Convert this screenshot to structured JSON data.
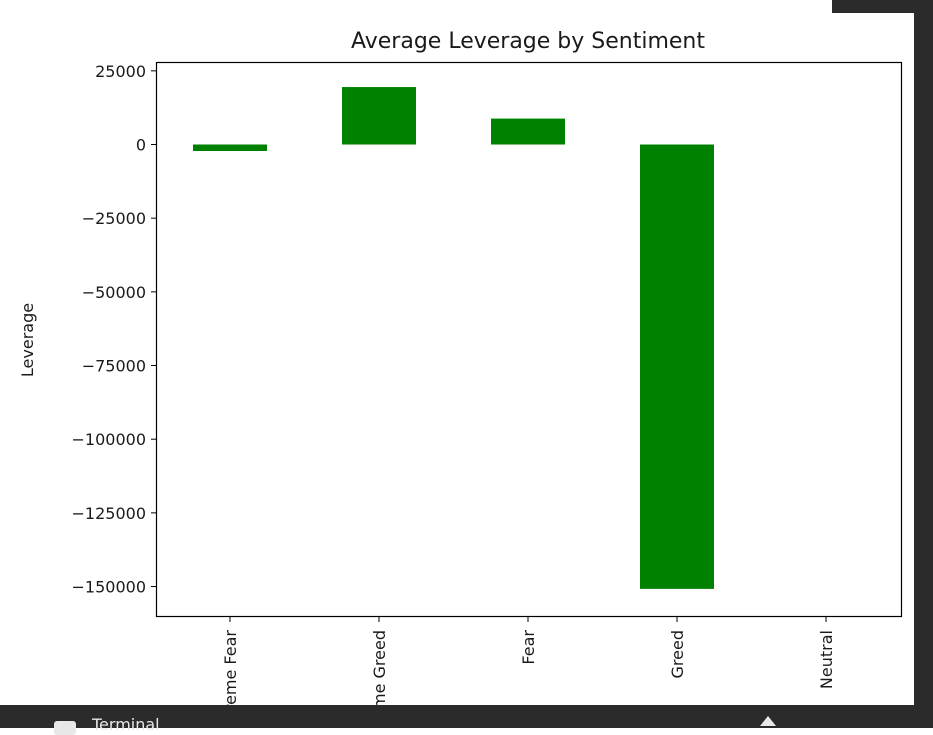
{
  "page": {
    "bottom_panel_label": "Terminal"
  },
  "colors": {
    "bar": "#008000",
    "axis": "#000000",
    "chrome": "#2b2b2b"
  },
  "chart_data": {
    "type": "bar",
    "title": "Average Leverage by Sentiment",
    "xlabel": "",
    "ylabel": "Leverage",
    "categories": [
      "Extreme Fear",
      "Extreme Greed",
      "Fear",
      "Greed",
      "Neutral"
    ],
    "values": [
      -2200,
      19500,
      8800,
      -150800,
      0
    ],
    "ylim": [
      -160000,
      28000
    ],
    "yticks": [
      25000,
      0,
      -25000,
      -50000,
      -75000,
      -100000,
      -125000,
      -150000
    ],
    "ytick_labels": [
      "25000",
      "0",
      "−25000",
      "−50000",
      "−75000",
      "−100000",
      "−125000",
      "−150000"
    ],
    "grid": false,
    "legend": "none"
  }
}
